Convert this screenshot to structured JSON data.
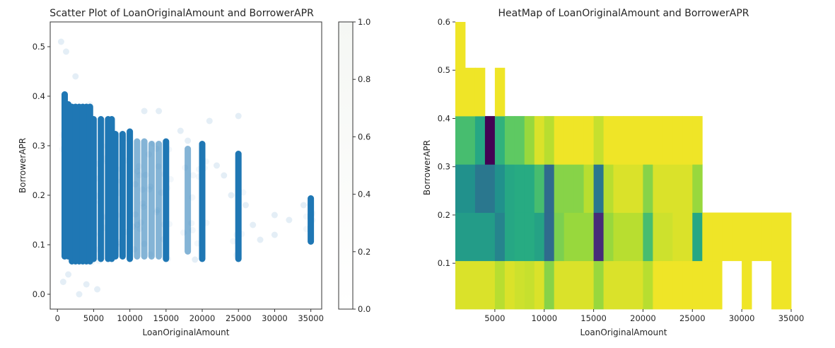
{
  "chart_data": [
    {
      "type": "scatter",
      "title": "Scatter Plot of LoanOriginalAmount and BorrowerAPR",
      "xlabel": "LoanOriginalAmount",
      "ylabel": "BorrowerAPR",
      "xlim": [
        -1000,
        36500
      ],
      "ylim": [
        -0.03,
        0.55
      ],
      "xticks": [
        0,
        5000,
        10000,
        15000,
        20000,
        25000,
        30000,
        35000
      ],
      "yticks": [
        0.0,
        0.1,
        0.2,
        0.3,
        0.4,
        0.5
      ],
      "marker_color": "#1f77b4",
      "point_alpha": 0.02,
      "colorbar": {
        "range": [
          0.0,
          1.0
        ],
        "ticks": [
          0.0,
          0.2,
          0.4,
          0.6,
          0.8,
          1.0
        ],
        "colors": [
          "#ffffff",
          "#f5f7f4"
        ]
      },
      "series": [
        {
          "description": "dense vertical columns at common loan amounts",
          "columns": [
            {
              "x": 1000,
              "y": [
                0.07,
                0.41
              ]
            },
            {
              "x": 1500,
              "y": [
                0.07,
                0.39
              ]
            },
            {
              "x": 2000,
              "y": [
                0.06,
                0.385
              ]
            },
            {
              "x": 2500,
              "y": [
                0.06,
                0.385
              ]
            },
            {
              "x": 3000,
              "y": [
                0.06,
                0.385
              ]
            },
            {
              "x": 3500,
              "y": [
                0.06,
                0.385
              ]
            },
            {
              "x": 4000,
              "y": [
                0.06,
                0.385
              ]
            },
            {
              "x": 4500,
              "y": [
                0.06,
                0.385
              ]
            },
            {
              "x": 5000,
              "y": [
                0.065,
                0.36
              ]
            },
            {
              "x": 6000,
              "y": [
                0.065,
                0.36
              ]
            },
            {
              "x": 7000,
              "y": [
                0.065,
                0.36
              ]
            },
            {
              "x": 7500,
              "y": [
                0.065,
                0.36
              ]
            },
            {
              "x": 8000,
              "y": [
                0.07,
                0.33
              ]
            },
            {
              "x": 9000,
              "y": [
                0.07,
                0.33
              ]
            },
            {
              "x": 10000,
              "y": [
                0.065,
                0.335
              ]
            },
            {
              "x": 11000,
              "y": [
                0.07,
                0.315
              ]
            },
            {
              "x": 12000,
              "y": [
                0.07,
                0.315
              ]
            },
            {
              "x": 13000,
              "y": [
                0.07,
                0.31
              ]
            },
            {
              "x": 14000,
              "y": [
                0.07,
                0.31
              ]
            },
            {
              "x": 15000,
              "y": [
                0.065,
                0.315
              ]
            },
            {
              "x": 18000,
              "y": [
                0.08,
                0.3
              ]
            },
            {
              "x": 20000,
              "y": [
                0.065,
                0.31
              ]
            },
            {
              "x": 25000,
              "y": [
                0.065,
                0.29
              ]
            },
            {
              "x": 35000,
              "y": [
                0.1,
                0.2
              ]
            }
          ],
          "sparse_points": [
            [
              500,
              0.51
            ],
            [
              1200,
              0.49
            ],
            [
              2500,
              0.44
            ],
            [
              4000,
              0.02
            ],
            [
              5500,
              0.01
            ],
            [
              3000,
              0.0
            ],
            [
              1500,
              0.04
            ],
            [
              800,
              0.025
            ],
            [
              12000,
              0.37
            ],
            [
              14000,
              0.37
            ],
            [
              17000,
              0.33
            ],
            [
              18000,
              0.31
            ],
            [
              22000,
              0.26
            ],
            [
              23000,
              0.24
            ],
            [
              24000,
              0.2
            ],
            [
              26000,
              0.18
            ],
            [
              27000,
              0.14
            ],
            [
              28000,
              0.11
            ],
            [
              30000,
              0.16
            ],
            [
              32000,
              0.15
            ],
            [
              34000,
              0.18
            ],
            [
              21000,
              0.35
            ],
            [
              25000,
              0.36
            ],
            [
              19000,
              0.07
            ],
            [
              30000,
              0.12
            ]
          ]
        }
      ]
    },
    {
      "type": "heatmap",
      "title": "HeatMap of LoanOriginalAmount and BorrowerAPR",
      "xlabel": "LoanOriginalAmount",
      "ylabel": "BorrowerAPR",
      "xlim": [
        1000,
        35000
      ],
      "ylim": [
        0.005,
        0.6
      ],
      "xticks": [
        5000,
        10000,
        15000,
        20000,
        25000,
        30000,
        35000
      ],
      "yticks": [
        0.1,
        0.2,
        0.3,
        0.4,
        0.5,
        0.6
      ],
      "colormap": "viridis",
      "y_bins": [
        0.005,
        0.105,
        0.205,
        0.305,
        0.405,
        0.505,
        0.6
      ],
      "x_bins": [
        1000,
        2000,
        3000,
        4000,
        5000,
        6000,
        7000,
        8000,
        9000,
        10000,
        11000,
        12000,
        13000,
        14000,
        15000,
        16000,
        17000,
        18000,
        19000,
        20000,
        21000,
        22000,
        23000,
        24000,
        25000,
        26000,
        27000,
        28000,
        29000,
        30000,
        31000,
        32000,
        33000,
        34000,
        35000
      ],
      "values": [
        [
          0.95,
          0.95,
          0.95,
          0.95,
          0.9,
          0.95,
          0.93,
          0.92,
          0.95,
          0.82,
          0.95,
          0.95,
          0.95,
          0.95,
          0.85,
          0.95,
          0.95,
          0.95,
          0.95,
          0.9,
          0.98,
          0.98,
          0.98,
          0.98,
          0.98,
          0.98,
          0.98,
          null,
          null,
          0.98,
          null,
          null,
          0.98,
          0.98
        ],
        [
          0.55,
          0.55,
          0.55,
          0.55,
          0.45,
          0.6,
          0.62,
          0.62,
          0.58,
          0.35,
          0.8,
          0.85,
          0.85,
          0.85,
          0.15,
          0.85,
          0.9,
          0.9,
          0.9,
          0.7,
          0.93,
          0.93,
          0.95,
          0.95,
          0.6,
          0.98,
          0.98,
          0.98,
          0.98,
          0.98,
          0.98,
          0.98,
          0.98,
          0.98
        ],
        [
          0.5,
          0.5,
          0.4,
          0.4,
          0.5,
          0.6,
          0.62,
          0.62,
          0.7,
          0.35,
          0.82,
          0.82,
          0.82,
          0.9,
          0.4,
          0.9,
          0.95,
          0.95,
          0.95,
          0.82,
          0.95,
          0.95,
          0.95,
          0.95,
          0.85,
          null,
          null,
          null,
          null,
          null,
          null,
          null,
          null,
          null
        ],
        [
          0.7,
          0.7,
          0.6,
          0.0,
          0.65,
          0.75,
          0.75,
          0.85,
          0.95,
          0.9,
          0.98,
          0.98,
          0.98,
          0.98,
          0.92,
          0.98,
          0.98,
          0.98,
          0.98,
          0.98,
          0.98,
          0.98,
          0.98,
          0.98,
          0.98,
          null,
          null,
          null,
          null,
          null,
          null,
          null,
          null,
          null
        ],
        [
          0.98,
          0.98,
          0.98,
          null,
          0.98,
          null,
          null,
          null,
          null,
          null,
          null,
          null,
          null,
          null,
          null,
          null,
          null,
          null,
          null,
          null,
          null,
          null,
          null,
          null,
          null,
          null,
          null,
          null,
          null,
          null,
          null,
          null,
          null,
          null
        ],
        [
          0.98,
          null,
          null,
          null,
          null,
          null,
          null,
          null,
          null,
          null,
          null,
          null,
          null,
          null,
          null,
          null,
          null,
          null,
          null,
          null,
          null,
          null,
          null,
          null,
          null,
          null,
          null,
          null,
          null,
          null,
          null,
          null,
          null,
          null
        ]
      ]
    }
  ]
}
